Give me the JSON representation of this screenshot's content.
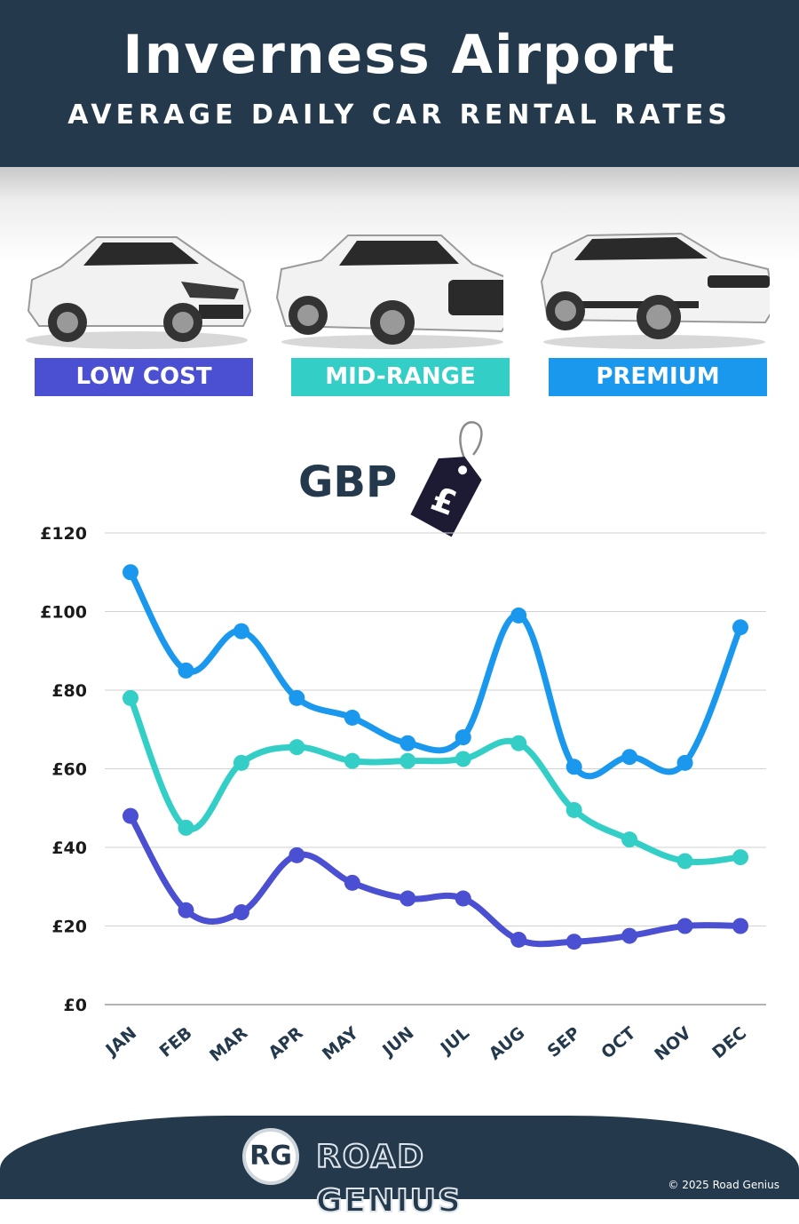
{
  "header": {
    "title": "Inverness Airport",
    "subtitle": "AVERAGE DAILY CAR RENTAL RATES"
  },
  "categories_badges": {
    "low": "LOW COST",
    "mid": "MID-RANGE",
    "premium": "PREMIUM"
  },
  "currency_label": "GBP",
  "currency_symbol": "£",
  "footer": {
    "logo_initials": "RG",
    "brand": "ROAD GENIUS",
    "copyright": "© 2025 Road Genius"
  },
  "colors": {
    "header_bg": "#243a4c",
    "low": "#4b4fd1",
    "mid": "#33cfc6",
    "premium": "#1a98ee"
  },
  "chart_data": {
    "type": "line",
    "categories": [
      "JAN",
      "FEB",
      "MAR",
      "APR",
      "MAY",
      "JUN",
      "JUL",
      "AUG",
      "SEP",
      "OCT",
      "NOV",
      "DEC"
    ],
    "series": [
      {
        "name": "PREMIUM",
        "color": "#1a98ee",
        "values": [
          110,
          85,
          95,
          78,
          73,
          66.5,
          68,
          99,
          60.5,
          63,
          61.5,
          96
        ]
      },
      {
        "name": "MID-RANGE",
        "color": "#33cfc6",
        "values": [
          78,
          45,
          61.5,
          65.5,
          62,
          62,
          62.5,
          66.5,
          49.5,
          42,
          36.5,
          37.5
        ]
      },
      {
        "name": "LOW COST",
        "color": "#4b4fd1",
        "values": [
          48,
          24,
          23.5,
          38,
          31,
          27,
          27,
          16.5,
          16,
          17.5,
          20,
          20
        ]
      }
    ],
    "y_ticks": [
      "£0",
      "£20",
      "£40",
      "£60",
      "£80",
      "£100",
      "£120"
    ],
    "ylim": [
      0,
      120
    ],
    "grid": true
  }
}
